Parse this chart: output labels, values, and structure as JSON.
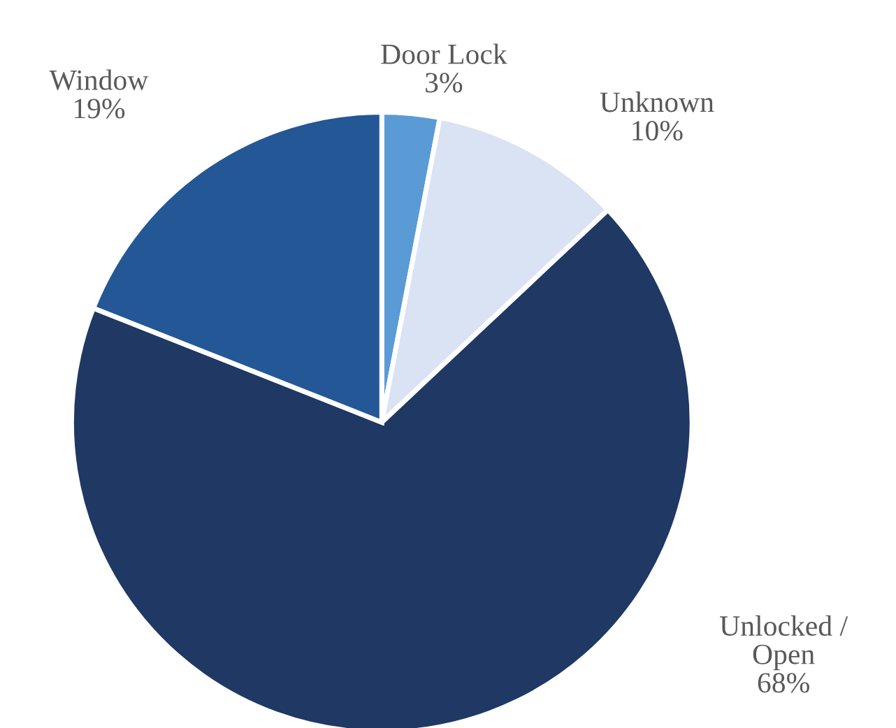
{
  "chart_data": {
    "type": "pie",
    "categories": [
      "Door Lock",
      "Unknown",
      "Unlocked /\nOpen",
      "Window"
    ],
    "values": [
      3,
      10,
      68,
      19
    ],
    "value_labels": [
      "3%",
      "10%",
      "68%",
      "19%"
    ],
    "colors": [
      "#5b9bd5",
      "#dae3f3",
      "#1f3864",
      "#245796"
    ]
  }
}
